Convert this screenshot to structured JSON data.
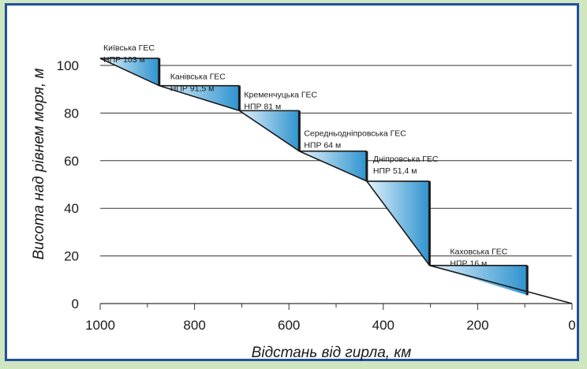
{
  "chart_data": {
    "type": "area",
    "title": "",
    "xlabel": "Відстань від гирла, км",
    "ylabel": "Висота над рівнем моря, м",
    "xlim": [
      1000,
      0
    ],
    "ylim": [
      0,
      110
    ],
    "x_ticks": [
      1000,
      800,
      600,
      400,
      200,
      0
    ],
    "y_ticks": [
      0,
      20,
      40,
      60,
      80,
      100
    ],
    "grid": "horizontal",
    "colors": {
      "fill_light": "#e4f3fb",
      "fill_dark": "#2e93cf",
      "line": "#1a1a1a",
      "grid": "#333333",
      "frame": "#1f4fa0"
    },
    "profile": [
      {
        "x": 1000,
        "y": 103
      },
      {
        "x": 875,
        "y": 91.5
      },
      {
        "x": 705,
        "y": 81
      },
      {
        "x": 578,
        "y": 64
      },
      {
        "x": 435,
        "y": 51.4
      },
      {
        "x": 302,
        "y": 16
      },
      {
        "x": 0,
        "y": 0
      }
    ],
    "dams": [
      {
        "name": "Київська ГЕС",
        "npr": "НПР 103 м",
        "x": 1000,
        "level": 103
      },
      {
        "name": "Канівська ГЕС",
        "npr": "НПР 91,5 м",
        "x": 875,
        "level": 91.5
      },
      {
        "name": "Кременчуцька ГЕС",
        "npr": "НПР 81 м",
        "x": 705,
        "level": 81
      },
      {
        "name": "Середньодніпровська ГЕС",
        "npr": "НПР 64 м",
        "x": 578,
        "level": 64
      },
      {
        "name": "Дніпровська ГЕС",
        "npr": "НПР 51,4 м",
        "x": 435,
        "level": 51.4
      },
      {
        "name": "Каховська ГЕС",
        "npr": "НПР 16 м",
        "x": 302,
        "level": 16
      }
    ],
    "reservoirs": [
      {
        "x_start": 1000,
        "x_dam": 875,
        "level": 103,
        "bottom_at_dam": 91.5
      },
      {
        "x_start": 875,
        "x_dam": 705,
        "level": 91.5,
        "bottom_at_dam": 81
      },
      {
        "x_start": 705,
        "x_dam": 578,
        "level": 81,
        "bottom_at_dam": 64
      },
      {
        "x_start": 578,
        "x_dam": 435,
        "level": 64,
        "bottom_at_dam": 51.4
      },
      {
        "x_start": 435,
        "x_dam": 302,
        "level": 51.4,
        "bottom_at_dam": 16
      },
      {
        "x_start": 302,
        "x_dam": 95,
        "level": 16,
        "bottom_at_dam": 3.5
      }
    ]
  }
}
